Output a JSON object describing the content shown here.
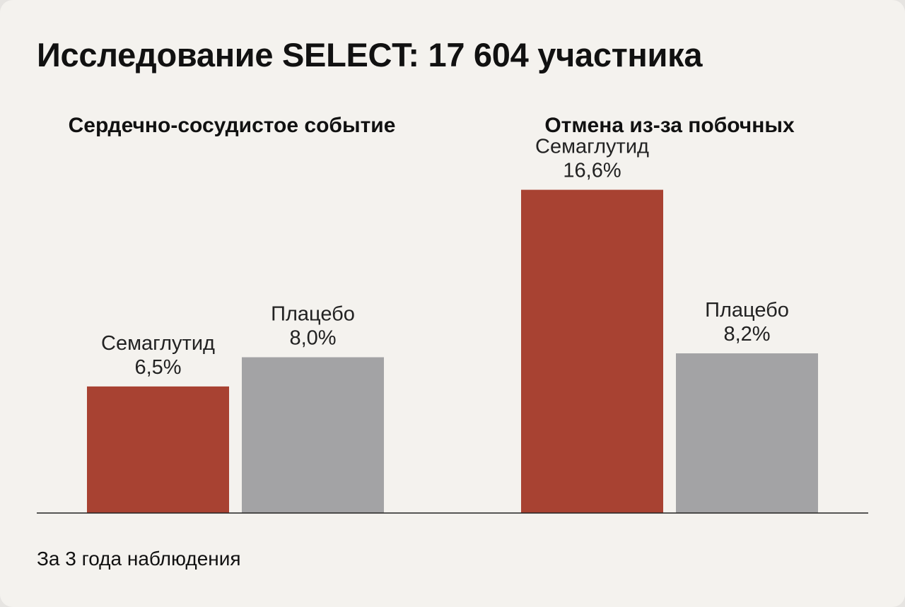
{
  "title": "Исследование SELECT: 17 604 участника",
  "footnote": "За 3 года наблюдения",
  "colors": {
    "background": "#f4f2ee",
    "semaglutide": "#a84232",
    "placebo": "#a3a3a5",
    "axis": "#222222"
  },
  "chart_data": [
    {
      "type": "bar",
      "title": "Сердечно-сосудистое событие",
      "categories": [
        "Семаглутид",
        "Плацебо"
      ],
      "values": [
        6.5,
        8.0
      ],
      "value_labels": [
        "6,5%",
        "8,0%"
      ],
      "unit": "%",
      "colors": [
        "#a84232",
        "#a3a3a5"
      ],
      "ylim": [
        0,
        18
      ],
      "grid": false
    },
    {
      "type": "bar",
      "title": "Отмена из-за побочных",
      "categories": [
        "Семаглутид",
        "Плацебо"
      ],
      "values": [
        16.6,
        8.2
      ],
      "value_labels": [
        "16,6%",
        "8,2%"
      ],
      "unit": "%",
      "colors": [
        "#a84232",
        "#a3a3a5"
      ],
      "ylim": [
        0,
        18
      ],
      "grid": false
    }
  ]
}
